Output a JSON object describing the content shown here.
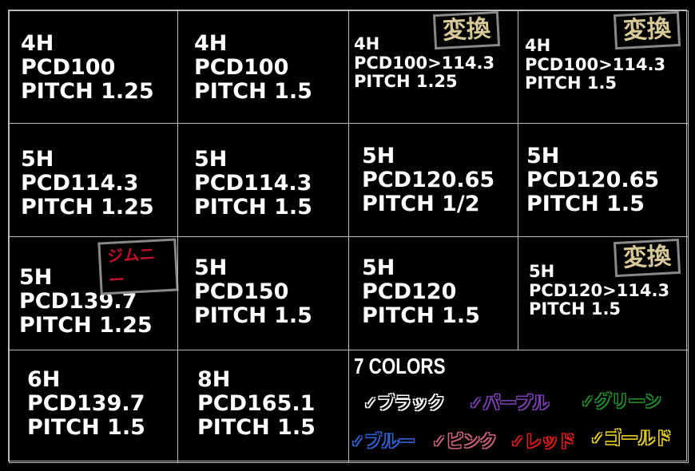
{
  "cells": [
    {
      "lines": [
        "4H",
        "PCD100",
        "PITCH 1.25"
      ]
    },
    {
      "lines": [
        "4H",
        "PCD100",
        "PITCH 1.5"
      ]
    },
    {
      "lines": [
        "4H",
        "PCD100>114.3",
        "PITCH 1.25"
      ],
      "badge": "変換"
    },
    {
      "lines": [
        "4H",
        "PCD100>114.3",
        "PITCH 1.5"
      ],
      "badge": "変換"
    },
    {
      "lines": [
        "5H",
        "PCD114.3",
        "PITCH 1.25"
      ]
    },
    {
      "lines": [
        "5H",
        "PCD114.3",
        "PITCH 1.5"
      ]
    },
    {
      "lines": [
        "5H",
        "PCD120.65",
        "PITCH 1/2"
      ]
    },
    {
      "lines": [
        "5H",
        "PCD120.65",
        "PITCH 1.5"
      ]
    },
    {
      "lines": [
        "5H",
        "PCD139.7",
        "PITCH 1.25"
      ],
      "badge": "ジムニー"
    },
    {
      "lines": [
        "5H",
        "PCD150",
        "PITCH 1.5"
      ]
    },
    {
      "lines": [
        "5H",
        "PCD120",
        "PITCH 1.5"
      ]
    },
    {
      "lines": [
        "5H",
        "PCD120>114.3",
        "PITCH 1.5"
      ],
      "badge": "変換"
    },
    {
      "lines": [
        "6H",
        "PCD139.7",
        "PITCH 1.5"
      ]
    },
    {
      "lines": [
        "8H",
        "PCD165.1",
        "PITCH 1.5"
      ]
    }
  ],
  "colors": {
    "title": "7 COLORS",
    "items": [
      {
        "label": "✓ブラック",
        "color": "#ffffff"
      },
      {
        "label": "✓パープル",
        "color": "#7a3fb0"
      },
      {
        "label": "✓グリーン",
        "color": "#1f8a2a"
      },
      {
        "label": "✓ブルー",
        "color": "#2f63d8"
      },
      {
        "label": "✓ピンク",
        "color": "#c8607a"
      },
      {
        "label": "✓レッド",
        "color": "#e01818"
      },
      {
        "label": "✓ゴールド",
        "color": "#e8d020"
      }
    ]
  }
}
